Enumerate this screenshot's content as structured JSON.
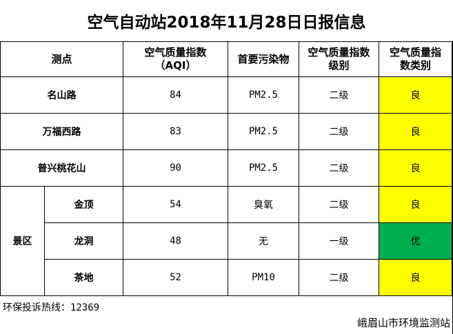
{
  "title": "空气自动站2018年11月28日日报信息",
  "headers": {
    "site": "测点",
    "aqi_line1": "空气质量指数",
    "aqi_line2": "（AQI）",
    "pollutant": "首要污染物",
    "level_line1": "空气质量指数",
    "level_line2": "级别",
    "category_line1": "空气质量指",
    "category_line2": "数类别"
  },
  "scenic_area_label": "景区",
  "rows": [
    {
      "site": "名山路",
      "aqi": "84",
      "pollutant": "PM2.5",
      "level": "二级",
      "category": "良",
      "category_color": "#ffff00"
    },
    {
      "site": "万福西路",
      "aqi": "83",
      "pollutant": "PM2.5",
      "level": "二级",
      "category": "良",
      "category_color": "#ffff00"
    },
    {
      "site": "普兴桃花山",
      "aqi": "90",
      "pollutant": "PM2.5",
      "level": "二级",
      "category": "良",
      "category_color": "#ffff00"
    },
    {
      "site": "金顶",
      "aqi": "54",
      "pollutant": "臭氧",
      "level": "二级",
      "category": "良",
      "category_color": "#ffff00"
    },
    {
      "site": "龙洞",
      "aqi": "48",
      "pollutant": "无",
      "level": "一级",
      "category": "优",
      "category_color": "#00b050"
    },
    {
      "site": "茶地",
      "aqi": "52",
      "pollutant": "PM10",
      "level": "二级",
      "category": "良",
      "category_color": "#ffff00"
    }
  ],
  "hotline_label": "环保投诉热线：",
  "hotline_number": "12369",
  "footer": "峨眉山市环境监测站"
}
